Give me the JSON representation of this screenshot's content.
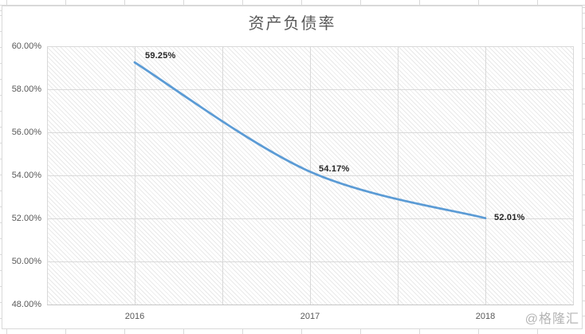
{
  "chart": {
    "title": "资产负债率",
    "watermark": "@格隆汇",
    "line_color": "#5b9bd5",
    "gridline_color": "#d9d9d9",
    "label_color": "#595959"
  },
  "chart_data": {
    "type": "line",
    "title": "资产负债率",
    "categories": [
      "2016",
      "2017",
      "2018"
    ],
    "series": [
      {
        "name": "资产负债率",
        "values": [
          59.25,
          54.17,
          52.01
        ]
      }
    ],
    "data_labels": [
      "59.25%",
      "54.17%",
      "52.01%"
    ],
    "yticks": [
      "60.00%",
      "58.00%",
      "56.00%",
      "54.00%",
      "52.00%",
      "50.00%",
      "48.00%"
    ],
    "ylim": [
      48,
      60
    ],
    "ytick_step": 2,
    "grid": true,
    "legend_position": "none",
    "plot_background": "diagonal-hatch",
    "line_color": "#5b9bd5",
    "smoothed_line": true
  }
}
